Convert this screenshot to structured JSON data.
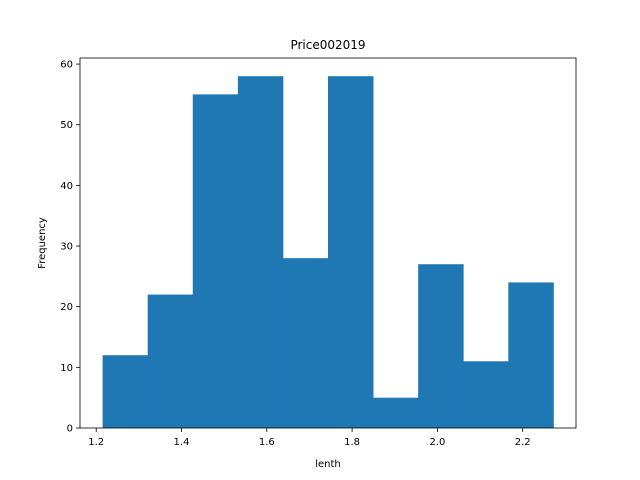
{
  "chart_data": {
    "type": "bar",
    "title": "Price002019",
    "xlabel": "lenth",
    "ylabel": "Frequency",
    "bin_edges": [
      1.215,
      1.3207,
      1.4264,
      1.5321,
      1.6378,
      1.7435,
      1.8492,
      1.9549,
      2.0606,
      2.1663,
      2.272
    ],
    "values": [
      12,
      22,
      55,
      58,
      28,
      58,
      5,
      27,
      11,
      24
    ],
    "xlim": [
      1.162,
      2.325
    ],
    "ylim": [
      0,
      61
    ],
    "x_ticks": [
      "1.2",
      "1.4",
      "1.6",
      "1.8",
      "2.0",
      "2.2"
    ],
    "y_ticks": [
      "0",
      "10",
      "20",
      "30",
      "40",
      "50",
      "60"
    ],
    "bar_color": "#1f77b4",
    "grid": false
  }
}
